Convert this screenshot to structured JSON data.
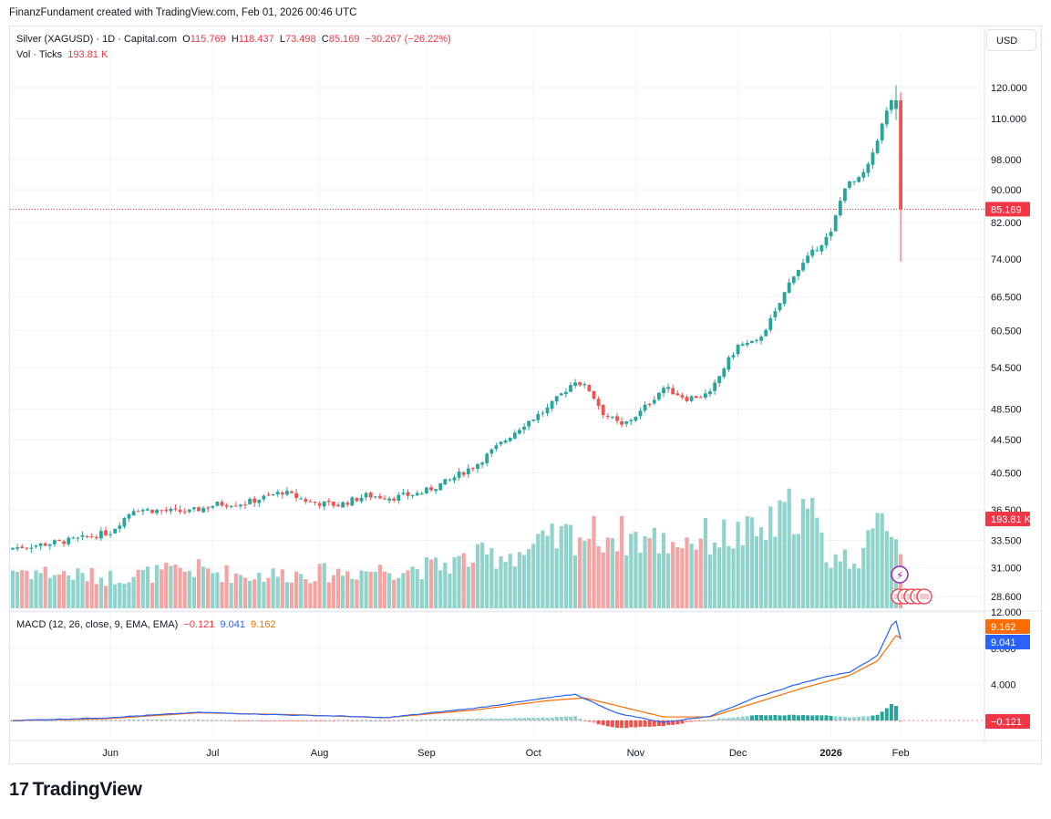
{
  "header": {
    "attribution": "FinanzFundament created with TradingView.com, Feb 01, 2026 00:46 UTC"
  },
  "symbol": {
    "title": "Silver (XAGUSD) · 1D · Capital.com",
    "o_label": "O",
    "o_value": "115.769",
    "h_label": "H",
    "h_value": "118.437",
    "l_label": "L",
    "l_value": "73.498",
    "c_label": "C",
    "c_value": "85.169",
    "change": "−30.267 (−26.22%)"
  },
  "volume": {
    "label": "Vol · Ticks",
    "value": "193.81 K"
  },
  "currency_button": "USD",
  "macd": {
    "label": "MACD (12, 26, close, 9, EMA, EMA)",
    "hist": "−0.121",
    "macd": "9.041",
    "signal": "9.162"
  },
  "brand": {
    "mark": "17",
    "name": "TradingView"
  },
  "colors": {
    "up": "#26a69a",
    "down": "#ef5350",
    "vol_up": "#8fd3cb",
    "vol_down": "#f5a3a3",
    "macd_line": "#2962ff",
    "signal_line": "#ff6d00",
    "last_price": "#f23645",
    "grid": "#f0f3fa"
  },
  "chart_data": [
    {
      "type": "candlestick",
      "title": "Silver (XAGUSD) · 1D · Capital.com",
      "scale": "log",
      "price_axis_ticks": [
        120,
        110,
        98,
        90,
        82,
        74,
        66.5,
        60.5,
        54.5,
        48.5,
        44.5,
        40.5,
        36.5,
        33.5,
        31,
        28.6
      ],
      "price_axis_labels": [
        "120.000",
        "110.000",
        "98.000",
        "90.000",
        "82.000",
        "74.000",
        "66.500",
        "60.500",
        "54.500",
        "48.500",
        "44.500",
        "40.500",
        "36.500",
        "33.500",
        "31.000",
        "28.600"
      ],
      "x_axis_labels": [
        "Jun",
        "Jul",
        "Aug",
        "Sep",
        "Oct",
        "Nov",
        "Dec",
        "2026",
        "Feb"
      ],
      "last_price": 85.169,
      "last_price_label": "85.169",
      "last_volume_label": "193.81 K",
      "close_anchors": [
        [
          0,
          32.8
        ],
        [
          6,
          33.1
        ],
        [
          14,
          33.6
        ],
        [
          21,
          34.3
        ],
        [
          26,
          36.6
        ],
        [
          32,
          36.4
        ],
        [
          38,
          36.3
        ],
        [
          44,
          37.1
        ],
        [
          50,
          37.2
        ],
        [
          58,
          38.4
        ],
        [
          64,
          37.3
        ],
        [
          70,
          37.0
        ],
        [
          76,
          38.0
        ],
        [
          82,
          37.8
        ],
        [
          88,
          38.3
        ],
        [
          94,
          39.7
        ],
        [
          100,
          41.6
        ],
        [
          105,
          44.0
        ],
        [
          110,
          46.5
        ],
        [
          115,
          48.5
        ],
        [
          121,
          52.6
        ],
        [
          124,
          51.2
        ],
        [
          127,
          48.0
        ],
        [
          131,
          46.2
        ],
        [
          135,
          48.1
        ],
        [
          140,
          51.5
        ],
        [
          145,
          50.0
        ],
        [
          150,
          50.6
        ],
        [
          153,
          54.5
        ],
        [
          156,
          58.0
        ],
        [
          160,
          58.5
        ],
        [
          164,
          63.5
        ],
        [
          168,
          71.0
        ],
        [
          170,
          73.0
        ],
        [
          173,
          76.5
        ],
        [
          176,
          79.5
        ],
        [
          179,
          91.0
        ],
        [
          182,
          92.5
        ],
        [
          184,
          96.0
        ],
        [
          187,
          108.0
        ],
        [
          189,
          116.0
        ],
        [
          190,
          115.77
        ],
        [
          191,
          85.17
        ]
      ],
      "volume_anchors": [
        [
          0,
          0.38
        ],
        [
          20,
          0.3
        ],
        [
          40,
          0.38
        ],
        [
          50,
          0.32
        ],
        [
          70,
          0.35
        ],
        [
          80,
          0.38
        ],
        [
          90,
          0.4
        ],
        [
          100,
          0.5
        ],
        [
          110,
          0.55
        ],
        [
          120,
          0.72
        ],
        [
          130,
          0.72
        ],
        [
          140,
          0.65
        ],
        [
          150,
          0.7
        ],
        [
          160,
          0.72
        ],
        [
          165,
          0.85
        ],
        [
          168,
          1.0
        ],
        [
          172,
          0.9
        ],
        [
          175,
          0.52
        ],
        [
          180,
          0.48
        ],
        [
          184,
          0.6
        ],
        [
          187,
          0.85
        ],
        [
          188,
          0.95
        ],
        [
          191,
          0.62
        ]
      ],
      "macd_anchors": [
        [
          0,
          0.0
        ],
        [
          20,
          0.3
        ],
        [
          40,
          0.9
        ],
        [
          60,
          0.6
        ],
        [
          70,
          0.5
        ],
        [
          80,
          0.3
        ],
        [
          100,
          1.4
        ],
        [
          115,
          2.5
        ],
        [
          121,
          2.9
        ],
        [
          130,
          0.8
        ],
        [
          140,
          -0.2
        ],
        [
          150,
          0.5
        ],
        [
          160,
          2.6
        ],
        [
          170,
          4.2
        ],
        [
          175,
          4.9
        ],
        [
          180,
          5.3
        ],
        [
          186,
          7.2
        ],
        [
          189,
          10.5
        ],
        [
          190,
          11.0
        ],
        [
          191,
          9.041
        ]
      ],
      "signal_anchors": [
        [
          0,
          0.0
        ],
        [
          20,
          0.2
        ],
        [
          40,
          0.85
        ],
        [
          60,
          0.65
        ],
        [
          80,
          0.3
        ],
        [
          100,
          1.2
        ],
        [
          115,
          2.2
        ],
        [
          123,
          2.5
        ],
        [
          140,
          0.4
        ],
        [
          150,
          0.4
        ],
        [
          160,
          2.0
        ],
        [
          170,
          3.6
        ],
        [
          180,
          5.0
        ],
        [
          186,
          6.6
        ],
        [
          190,
          9.4
        ],
        [
          191,
          9.162
        ]
      ]
    }
  ]
}
